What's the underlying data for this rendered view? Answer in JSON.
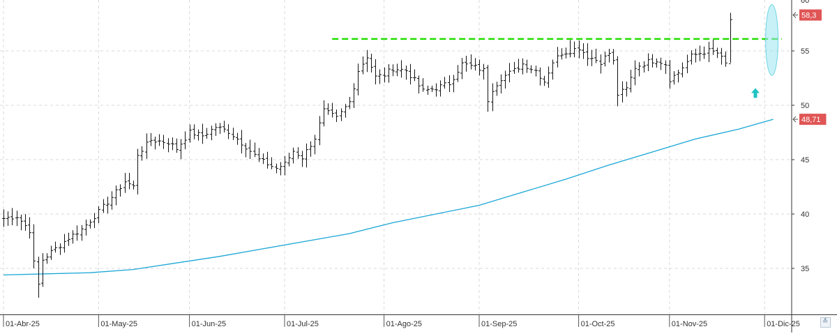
{
  "chart_data": {
    "type": "ohlc",
    "title": "",
    "xlabel": "",
    "ylabel": "",
    "ylim": [
      30.5,
      60
    ],
    "y_ticks": [
      35,
      40,
      45,
      50,
      55
    ],
    "y_tick_labels": [
      "35",
      "40",
      "45",
      "50",
      "55"
    ],
    "top_partial_label": "60",
    "x_tick_labels": [
      "01-Abr-25",
      "01-May-25",
      "01-Jun-25",
      "01-Jul-25",
      "01-Ago-25",
      "01-Sep-25",
      "01-Oct-25",
      "01-Nov-25",
      "01-Dic-25"
    ],
    "grid": true,
    "price_tags": [
      {
        "label": "58,3",
        "value": 58.3,
        "color": "#e05555"
      },
      {
        "label": "48,71",
        "value": 48.71,
        "color": "#e05555"
      }
    ],
    "resistance": {
      "value": 56.1,
      "color": "#22dd00",
      "style": "dashed"
    },
    "moving_average": {
      "color": "#1aa6d6",
      "points": [
        [
          0,
          34.4
        ],
        [
          10,
          34.5
        ],
        [
          20,
          34.6
        ],
        [
          30,
          34.9
        ],
        [
          40,
          35.5
        ],
        [
          50,
          36.1
        ],
        [
          60,
          36.8
        ],
        [
          70,
          37.5
        ],
        [
          80,
          38.2
        ],
        [
          90,
          39.2
        ],
        [
          100,
          40.0
        ],
        [
          110,
          40.8
        ],
        [
          120,
          42.0
        ],
        [
          130,
          43.2
        ],
        [
          140,
          44.5
        ],
        [
          150,
          45.7
        ],
        [
          160,
          46.9
        ],
        [
          170,
          47.8
        ],
        [
          178,
          48.71
        ]
      ]
    },
    "breakout_marker": {
      "type": "arrow-up",
      "value": 51.0,
      "index": 175,
      "color": "#21c3c3"
    },
    "highlight": {
      "type": "ellipse",
      "index": 178,
      "range": [
        53.0,
        59.0
      ],
      "color": "#99e6f0"
    },
    "anchors": [
      [
        0,
        39.6
      ],
      [
        3,
        39.8
      ],
      [
        6,
        38.5
      ],
      [
        7,
        35.5
      ],
      [
        8,
        33.5
      ],
      [
        9,
        35.8
      ],
      [
        11,
        36.5
      ],
      [
        15,
        37.8
      ],
      [
        18,
        38.6
      ],
      [
        22,
        40.2
      ],
      [
        26,
        42.0
      ],
      [
        28,
        43.0
      ],
      [
        30,
        42.5
      ],
      [
        31,
        45.5
      ],
      [
        34,
        46.8
      ],
      [
        38,
        46.6
      ],
      [
        40,
        46.0
      ],
      [
        43,
        47.5
      ],
      [
        46,
        47.2
      ],
      [
        49,
        48.0
      ],
      [
        52,
        47.6
      ],
      [
        56,
        46.2
      ],
      [
        59,
        45.0
      ],
      [
        63,
        44.2
      ],
      [
        65,
        44.6
      ],
      [
        67,
        45.8
      ],
      [
        69,
        45.2
      ],
      [
        72,
        47.0
      ],
      [
        74,
        49.5
      ],
      [
        77,
        48.8
      ],
      [
        80,
        50.3
      ],
      [
        82,
        53.2
      ],
      [
        84,
        54.5
      ],
      [
        86,
        52.6
      ],
      [
        88,
        52.8
      ],
      [
        90,
        53.4
      ],
      [
        93,
        53.2
      ],
      [
        95,
        52.3
      ],
      [
        97,
        51.3
      ],
      [
        100,
        51.6
      ],
      [
        103,
        52.0
      ],
      [
        106,
        53.8
      ],
      [
        109,
        53.5
      ],
      [
        111,
        53.2
      ],
      [
        112,
        50.5
      ],
      [
        113,
        51.5
      ],
      [
        115,
        52.5
      ],
      [
        118,
        53.2
      ],
      [
        120,
        53.8
      ],
      [
        123,
        53.2
      ],
      [
        125,
        52.2
      ],
      [
        127,
        54.0
      ],
      [
        129,
        54.8
      ],
      [
        131,
        55.0
      ],
      [
        133,
        55.3
      ],
      [
        135,
        54.5
      ],
      [
        138,
        54.0
      ],
      [
        140,
        54.8
      ],
      [
        141,
        54.0
      ],
      [
        142,
        51.0
      ],
      [
        144,
        51.5
      ],
      [
        146,
        53.5
      ],
      [
        149,
        54.0
      ],
      [
        151,
        54.2
      ],
      [
        153,
        53.8
      ],
      [
        154,
        52.4
      ],
      [
        156,
        53.0
      ],
      [
        159,
        54.5
      ],
      [
        161,
        54.8
      ],
      [
        163,
        55.0
      ],
      [
        165,
        54.8
      ],
      [
        167,
        53.8
      ],
      [
        168,
        57.9
      ]
    ],
    "wick_overrides": [
      {
        "index": 8,
        "low": 32.3
      },
      {
        "index": 112,
        "low": 49.4
      },
      {
        "index": 131,
        "high": 56.0
      },
      {
        "index": 142,
        "low": 49.9
      },
      {
        "index": 168,
        "high": 58.5,
        "low": 53.9
      }
    ],
    "x_tick_indices": [
      0,
      22,
      43,
      65,
      88,
      110,
      133,
      154,
      176
    ]
  }
}
